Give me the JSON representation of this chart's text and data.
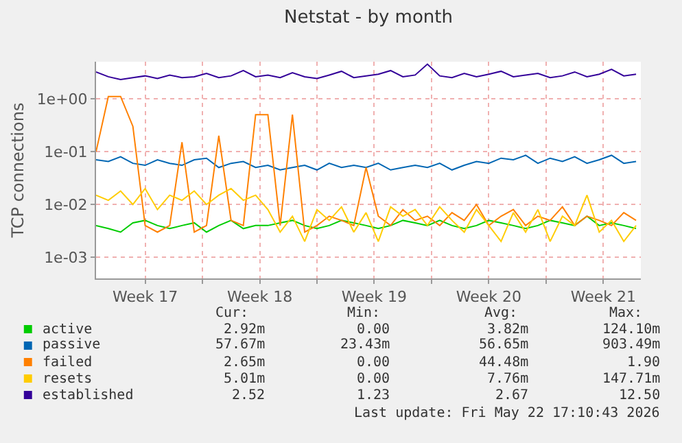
{
  "chart_data": {
    "type": "line",
    "title": "Netstat - by month",
    "ylabel": "TCP connections",
    "log": "y",
    "grid": true,
    "legend": "bottom",
    "marker": "none",
    "line_style": "solid",
    "xlim": [
      "2026-04-20T12:00",
      "2026-05-23T19:00"
    ],
    "ylim": [
      0.0004,
      5
    ],
    "xticks": [
      {
        "value": "2026-04-23T12:00",
        "label": "Week 17"
      },
      {
        "value": "2026-04-27",
        "label": null
      },
      {
        "value": "2026-04-30T12:00",
        "label": "Week 18"
      },
      {
        "value": "2026-05-04",
        "label": null
      },
      {
        "value": "2026-05-07T12:00",
        "label": "Week 19"
      },
      {
        "value": "2026-05-11",
        "label": null
      },
      {
        "value": "2026-05-14T12:00",
        "label": "Week 20"
      },
      {
        "value": "2026-05-18",
        "label": null
      },
      {
        "value": "2026-05-21T12:00",
        "label": "Week 21"
      }
    ],
    "yticks": [
      {
        "value": 0.001,
        "label": "1e-03"
      },
      {
        "value": 0.01,
        "label": "1e-02"
      },
      {
        "value": 0.1,
        "label": "1e-01"
      },
      {
        "value": 1,
        "label": "1e+00"
      }
    ],
    "x": [
      "2026-04-20T12:00",
      "2026-04-21T06:00",
      "2026-04-22T00:00",
      "2026-04-22T18:00",
      "2026-04-23T12:00",
      "2026-04-24T06:00",
      "2026-04-25T00:00",
      "2026-04-25T18:00",
      "2026-04-26T12:00",
      "2026-04-27T06:00",
      "2026-04-28T00:00",
      "2026-04-28T18:00",
      "2026-04-29T12:00",
      "2026-04-30T06:00",
      "2026-05-01T00:00",
      "2026-05-01T18:00",
      "2026-05-02T12:00",
      "2026-05-03T06:00",
      "2026-05-04T00:00",
      "2026-05-04T18:00",
      "2026-05-05T12:00",
      "2026-05-06T06:00",
      "2026-05-07T00:00",
      "2026-05-07T18:00",
      "2026-05-08T12:00",
      "2026-05-09T06:00",
      "2026-05-10T00:00",
      "2026-05-10T18:00",
      "2026-05-11T12:00",
      "2026-05-12T06:00",
      "2026-05-13T00:00",
      "2026-05-13T18:00",
      "2026-05-14T12:00",
      "2026-05-15T06:00",
      "2026-05-16T00:00",
      "2026-05-16T18:00",
      "2026-05-17T12:00",
      "2026-05-18T06:00",
      "2026-05-19T00:00",
      "2026-05-19T18:00",
      "2026-05-20T12:00",
      "2026-05-21T06:00",
      "2026-05-22T00:00",
      "2026-05-22T18:00",
      "2026-05-23T12:00"
    ],
    "series": [
      {
        "name": "active",
        "color": "#00cc00",
        "values": [
          0.004,
          0.0035,
          0.003,
          0.0045,
          0.005,
          0.004,
          0.0035,
          0.004,
          0.0045,
          0.003,
          0.004,
          0.005,
          0.0035,
          0.004,
          0.004,
          0.0045,
          0.005,
          0.004,
          0.0035,
          0.004,
          0.005,
          0.0045,
          0.004,
          0.0035,
          0.004,
          0.005,
          0.0045,
          0.004,
          0.005,
          0.004,
          0.0035,
          0.004,
          0.005,
          0.0045,
          0.004,
          0.0035,
          0.004,
          0.005,
          0.0045,
          0.004,
          0.006,
          0.004,
          0.0045,
          0.004,
          0.0035
        ]
      },
      {
        "name": "passive",
        "color": "#0066b3",
        "values": [
          0.07,
          0.065,
          0.08,
          0.06,
          0.055,
          0.07,
          0.06,
          0.055,
          0.07,
          0.075,
          0.05,
          0.06,
          0.065,
          0.05,
          0.055,
          0.045,
          0.05,
          0.055,
          0.045,
          0.06,
          0.05,
          0.055,
          0.05,
          0.06,
          0.045,
          0.05,
          0.055,
          0.05,
          0.06,
          0.045,
          0.055,
          0.065,
          0.06,
          0.075,
          0.07,
          0.085,
          0.06,
          0.075,
          0.065,
          0.08,
          0.06,
          0.07,
          0.085,
          0.06,
          0.065
        ]
      },
      {
        "name": "failed",
        "color": "#ff8000",
        "values": [
          0.1,
          1.1,
          1.1,
          0.3,
          0.004,
          0.003,
          0.004,
          0.15,
          0.003,
          0.004,
          0.2,
          0.005,
          0.004,
          0.5,
          0.5,
          0.004,
          0.5,
          0.003,
          0.004,
          0.006,
          0.005,
          0.004,
          0.05,
          0.006,
          0.004,
          0.008,
          0.005,
          0.006,
          0.004,
          0.007,
          0.005,
          0.01,
          0.004,
          0.006,
          0.008,
          0.004,
          0.006,
          0.005,
          0.009,
          0.004,
          0.006,
          0.005,
          0.004,
          0.007,
          0.005
        ]
      },
      {
        "name": "resets",
        "color": "#ffcc00",
        "values": [
          0.015,
          0.012,
          0.018,
          0.01,
          0.02,
          0.008,
          0.015,
          0.012,
          0.018,
          0.01,
          0.015,
          0.02,
          0.012,
          0.015,
          0.008,
          0.003,
          0.006,
          0.002,
          0.008,
          0.005,
          0.009,
          0.003,
          0.007,
          0.002,
          0.009,
          0.006,
          0.008,
          0.004,
          0.009,
          0.005,
          0.003,
          0.008,
          0.004,
          0.002,
          0.007,
          0.003,
          0.008,
          0.002,
          0.006,
          0.004,
          0.015,
          0.003,
          0.005,
          0.002,
          0.004
        ]
      },
      {
        "name": "established",
        "color": "#330099",
        "values": [
          3.2,
          2.6,
          2.3,
          2.5,
          2.7,
          2.4,
          2.8,
          2.5,
          2.6,
          3.0,
          2.5,
          2.7,
          3.4,
          2.6,
          2.8,
          2.5,
          3.1,
          2.6,
          2.4,
          2.8,
          3.3,
          2.5,
          2.7,
          2.9,
          3.4,
          2.6,
          2.8,
          4.5,
          2.7,
          2.5,
          3.0,
          2.6,
          2.9,
          3.3,
          2.6,
          2.8,
          3.0,
          2.5,
          2.7,
          3.2,
          2.6,
          2.9,
          3.6,
          2.7,
          2.9
        ]
      }
    ],
    "annotations": [
      "Cur:",
      "Min:",
      "Avg:",
      "Max:",
      "2.92m",
      "0.00",
      "3.82m",
      "124.10m",
      "57.67m",
      "23.43m",
      "56.65m",
      "903.49m",
      "2.65m",
      "0.00",
      "44.48m",
      "1.90",
      "5.01m",
      "0.00",
      "7.76m",
      "147.71m",
      "2.52",
      "1.23",
      "2.67",
      "12.50",
      "Last update: Fri May 22 17:10:43 2026"
    ]
  }
}
